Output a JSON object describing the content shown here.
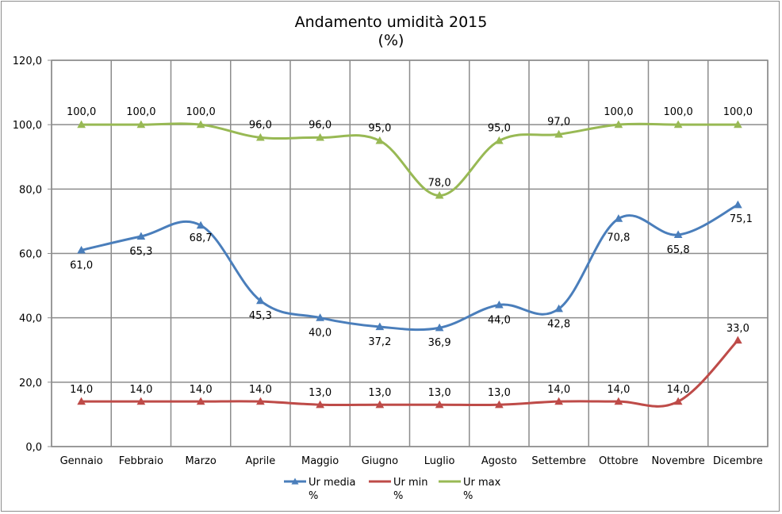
{
  "chart_data": {
    "type": "line",
    "title": "Andamento umidità 2015",
    "subtitle": "(%)",
    "xlabel": "",
    "ylabel": "",
    "ylim": [
      0,
      120
    ],
    "yticks": [
      0,
      20,
      40,
      60,
      80,
      100,
      120
    ],
    "ytick_labels": [
      "0,0",
      "20,0",
      "40,0",
      "60,0",
      "80,0",
      "100,0",
      "120,0"
    ],
    "grid": true,
    "legend_position": "bottom",
    "categories": [
      "Gennaio",
      "Febbraio",
      "Marzo",
      "Aprile",
      "Maggio",
      "Giugno",
      "Luglio",
      "Agosto",
      "Settembre",
      "Ottobre",
      "Novembre",
      "Dicembre"
    ],
    "series": [
      {
        "name": "Ur media %",
        "legend_lines": [
          "Ur media",
          "%"
        ],
        "color": "#4a7ebb",
        "values": [
          61.0,
          65.3,
          68.7,
          45.3,
          40.0,
          37.2,
          36.9,
          44.0,
          42.8,
          70.8,
          65.8,
          75.1
        ],
        "labels": [
          "61,0",
          "65,3",
          "68,7",
          "45,3",
          "40,0",
          "37,2",
          "36,9",
          "44,0",
          "42,8",
          "70,8",
          "65,8",
          "75,1"
        ]
      },
      {
        "name": "Ur min %",
        "legend_lines": [
          "Ur min",
          "%"
        ],
        "color": "#be4b48",
        "values": [
          14.0,
          14.0,
          14.0,
          14.0,
          13.0,
          13.0,
          13.0,
          13.0,
          14.0,
          14.0,
          14.0,
          33.0
        ],
        "labels": [
          "14,0",
          "14,0",
          "14,0",
          "14,0",
          "13,0",
          "13,0",
          "13,0",
          "13,0",
          "14,0",
          "14,0",
          "14,0",
          "33,0"
        ]
      },
      {
        "name": "Ur max %",
        "legend_lines": [
          "Ur max",
          "%"
        ],
        "color": "#98b954",
        "values": [
          100.0,
          100.0,
          100.0,
          96.0,
          96.0,
          95.0,
          78.0,
          95.0,
          97.0,
          100.0,
          100.0,
          100.0
        ],
        "labels": [
          "100,0",
          "100,0",
          "100,0",
          "96,0",
          "96,0",
          "95,0",
          "78,0",
          "95,0",
          "97,0",
          "100,0",
          "100,0",
          "100,0"
        ]
      }
    ]
  }
}
